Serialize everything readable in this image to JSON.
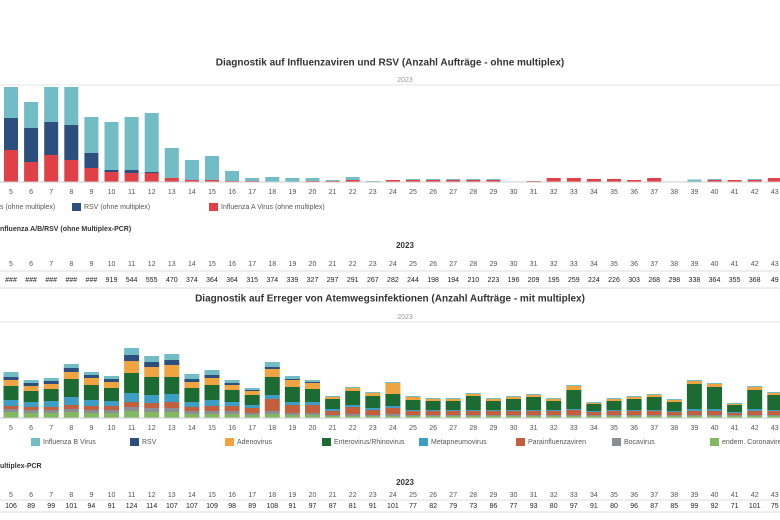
{
  "chart_data": [
    {
      "type": "bar",
      "stacked": true,
      "title": "Diagnostik auf Influenzaviren und RSV (Anzahl Aufträge - ohne multiplex)",
      "subtitle": "2023",
      "categories": [
        5,
        6,
        7,
        8,
        9,
        10,
        11,
        12,
        13,
        14,
        15,
        16,
        17,
        18,
        19,
        20,
        21,
        22,
        23,
        24,
        25,
        26,
        27,
        28,
        29,
        30,
        31,
        32,
        33,
        34,
        35,
        36,
        37,
        38,
        39,
        40,
        41,
        42,
        43
      ],
      "ylim": [
        0,
        95
      ],
      "series": [
        {
          "name": "s (ohne multiplex)",
          "color": "#72bcc6",
          "values": [
            31,
            26,
            35,
            38,
            36,
            48,
            53,
            59,
            30,
            20,
            24,
            10,
            3,
            5,
            4,
            3,
            1,
            3,
            1,
            0,
            1,
            1,
            1,
            1,
            1,
            0,
            0,
            0,
            0,
            0,
            0,
            0,
            0,
            0,
            2,
            1,
            0,
            1,
            0
          ]
        },
        {
          "name": "RSV (ohne multiplex)",
          "color": "#2c4f7e",
          "values": [
            32,
            34,
            33,
            35,
            15,
            2,
            3,
            1,
            0,
            0,
            0,
            0,
            0,
            0,
            0,
            0,
            0,
            0,
            0,
            0,
            0,
            0,
            0,
            0,
            0,
            0,
            0,
            0,
            0,
            0,
            0,
            0,
            0,
            0,
            0,
            0,
            0,
            0,
            0
          ]
        },
        {
          "name": "Influenza A Virus (ohne multiplex)",
          "color": "#e04146",
          "values": [
            32,
            20,
            27,
            22,
            14,
            10,
            9,
            9,
            4,
            2,
            2,
            1,
            1,
            0,
            0,
            1,
            1,
            2,
            0,
            2,
            2,
            2,
            2,
            2,
            2,
            0,
            1,
            4,
            4,
            3,
            3,
            2,
            4,
            0,
            0.5,
            2,
            2,
            2,
            4
          ]
        }
      ]
    },
    {
      "type": "bar",
      "stacked": true,
      "title": "Diagnostik auf Erreger von Atemwegsinfektionen (Anzahl Aufträge - mit multiplex)",
      "subtitle": "2023",
      "categories": [
        5,
        6,
        7,
        8,
        9,
        10,
        11,
        12,
        13,
        14,
        15,
        16,
        17,
        18,
        19,
        20,
        21,
        22,
        23,
        24,
        25,
        26,
        27,
        28,
        29,
        30,
        31,
        32,
        33,
        34,
        35,
        36,
        37,
        38,
        39,
        40,
        41,
        42,
        43
      ],
      "ylim": [
        0,
        93
      ],
      "series": [
        {
          "name": "Influenza B Virus",
          "color": "#72bcc6",
          "values": [
            5,
            3,
            3,
            4,
            3,
            3,
            7,
            6,
            6,
            5,
            5,
            3,
            2,
            5,
            3,
            2,
            1,
            1,
            1,
            1,
            1,
            1,
            1,
            1,
            1,
            1,
            1,
            1,
            1,
            1,
            1,
            1,
            1,
            1,
            1,
            1,
            1,
            1,
            1
          ]
        },
        {
          "name": "RSV",
          "color": "#2c4f7e",
          "values": [
            3,
            3,
            3,
            4,
            3,
            3,
            6,
            5,
            5,
            3,
            3,
            2,
            1,
            2,
            1,
            1,
            0,
            0,
            0,
            0,
            0,
            0,
            0,
            0,
            0,
            0,
            0,
            0,
            0,
            0,
            0,
            0,
            0,
            0,
            0,
            0,
            0,
            0,
            0
          ]
        },
        {
          "name": "Adenovirus",
          "color": "#f0a441",
          "values": [
            6,
            5,
            5,
            7,
            7,
            6,
            12,
            10,
            12,
            6,
            7,
            5,
            4,
            8,
            7,
            6,
            2,
            3,
            3,
            11,
            3,
            2,
            2,
            2,
            2,
            2,
            2,
            2,
            4,
            1,
            2,
            2,
            2,
            2,
            3,
            3,
            1,
            3,
            2
          ]
        },
        {
          "name": "Enterovirus/Rhinovirus",
          "color": "#1c6b33",
          "values": [
            14,
            11,
            12,
            18,
            15,
            13,
            20,
            18,
            17,
            14,
            15,
            12,
            10,
            18,
            15,
            13,
            10,
            14,
            12,
            12,
            10,
            9,
            9,
            14,
            9,
            11,
            13,
            9,
            19,
            7,
            9,
            11,
            13,
            9,
            25,
            22,
            7,
            19,
            15
          ]
        },
        {
          "name": "Metapneumovirus",
          "color": "#3d9dc3",
          "values": [
            6,
            5,
            6,
            8,
            6,
            5,
            9,
            8,
            8,
            5,
            6,
            4,
            3,
            4,
            3,
            3,
            2,
            2,
            2,
            2,
            1,
            1,
            1,
            1,
            1,
            1,
            1,
            1,
            1,
            1,
            1,
            1,
            1,
            1,
            2,
            2,
            1,
            2,
            1
          ]
        },
        {
          "name": "Parainfluenzaviren",
          "color": "#c2603d",
          "values": [
            3,
            3,
            3,
            4,
            4,
            4,
            5,
            5,
            6,
            4,
            5,
            5,
            5,
            12,
            8,
            8,
            4,
            7,
            5,
            6,
            4,
            4,
            4,
            4,
            4,
            4,
            4,
            4,
            5,
            3,
            4,
            4,
            4,
            3,
            4,
            4,
            2,
            4,
            4
          ]
        },
        {
          "name": "Bocavirus",
          "color": "#8a8f94",
          "values": [
            3,
            3,
            3,
            3,
            3,
            3,
            4,
            4,
            4,
            3,
            3,
            3,
            2,
            3,
            2,
            2,
            1,
            2,
            1,
            2,
            1,
            1,
            1,
            1,
            1,
            1,
            1,
            1,
            1,
            1,
            1,
            1,
            1,
            1,
            1,
            1,
            1,
            1,
            1
          ]
        },
        {
          "name": "endem. Coronaviren",
          "color": "#82b960",
          "values": [
            6,
            5,
            5,
            6,
            5,
            5,
            7,
            6,
            6,
            4,
            4,
            4,
            3,
            4,
            3,
            3,
            2,
            2,
            2,
            2,
            2,
            2,
            2,
            2,
            2,
            2,
            2,
            2,
            2,
            2,
            2,
            2,
            2,
            2,
            2,
            2,
            2,
            2,
            2
          ]
        }
      ]
    }
  ],
  "tables": [
    {
      "title": "nfluenza A/B/RSV (ohne Multiplex-PCR)",
      "year": "2023",
      "weeks": [
        "5",
        "6",
        "7",
        "8",
        "9",
        "10",
        "11",
        "12",
        "13",
        "14",
        "15",
        "16",
        "17",
        "18",
        "19",
        "20",
        "21",
        "22",
        "23",
        "24",
        "25",
        "26",
        "27",
        "28",
        "29",
        "30",
        "31",
        "32",
        "33",
        "34",
        "35",
        "36",
        "37",
        "38",
        "39",
        "40",
        "41",
        "42",
        "43"
      ],
      "values": [
        "###",
        "###",
        "###",
        "###",
        "###",
        "919",
        "544",
        "555",
        "470",
        "374",
        "364",
        "364",
        "315",
        "374",
        "339",
        "327",
        "297",
        "291",
        "267",
        "282",
        "244",
        "198",
        "194",
        "210",
        "223",
        "196",
        "209",
        "195",
        "259",
        "224",
        "226",
        "303",
        "268",
        "298",
        "338",
        "364",
        "355",
        "368",
        "49"
      ]
    },
    {
      "title": "ultiplex-PCR",
      "year": "2023",
      "weeks": [
        "5",
        "6",
        "7",
        "8",
        "9",
        "10",
        "11",
        "12",
        "13",
        "14",
        "15",
        "16",
        "17",
        "18",
        "19",
        "20",
        "21",
        "22",
        "23",
        "24",
        "25",
        "26",
        "27",
        "28",
        "29",
        "30",
        "31",
        "32",
        "33",
        "34",
        "35",
        "36",
        "37",
        "38",
        "39",
        "40",
        "41",
        "42",
        "43"
      ],
      "values": [
        "106",
        "89",
        "99",
        "101",
        "94",
        "91",
        "124",
        "114",
        "107",
        "107",
        "109",
        "98",
        "89",
        "108",
        "91",
        "97",
        "87",
        "81",
        "91",
        "101",
        "77",
        "82",
        "79",
        "73",
        "86",
        "77",
        "93",
        "80",
        "97",
        "91",
        "80",
        "96",
        "87",
        "85",
        "99",
        "92",
        "71",
        "101",
        "75"
      ]
    }
  ]
}
